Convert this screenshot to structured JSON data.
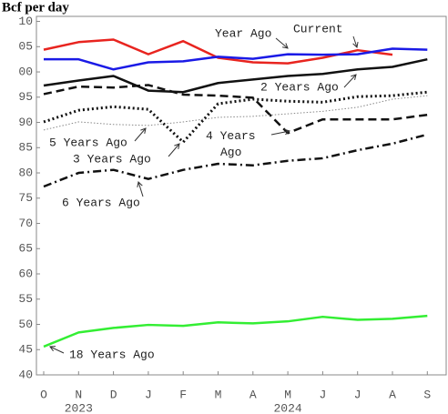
{
  "chart_data": {
    "type": "line",
    "title": "Bcf per day",
    "categories": [
      "O",
      "N",
      "D",
      "J",
      "F",
      "M",
      "A",
      "M",
      "J",
      "J",
      "A",
      "S"
    ],
    "year_labels": [
      "2023",
      "2024"
    ],
    "ylim": [
      40,
      111
    ],
    "yticks": [
      40,
      45,
      50,
      55,
      60,
      65,
      70,
      75,
      80,
      85,
      90,
      95,
      {
        "value": 100,
        "label": "00"
      },
      {
        "value": 105,
        "label": "05"
      },
      {
        "value": 110,
        "label": "10"
      }
    ],
    "grid": false,
    "series": [
      {
        "name": "Current",
        "color": "#e8241f",
        "style": "solid",
        "values": [
          104.4,
          105.9,
          106.4,
          103.5,
          106.1,
          102.8,
          101.9,
          101.7,
          102.8,
          104.3,
          103.4,
          null
        ]
      },
      {
        "name": "Year Ago",
        "color": "#1a1ae6",
        "style": "solid",
        "values": [
          102.5,
          102.5,
          100.5,
          101.9,
          102.1,
          103.0,
          102.6,
          103.5,
          103.4,
          103.5,
          104.6,
          104.4
        ]
      },
      {
        "name": "2 Years Ago",
        "color": "#111111",
        "style": "solid",
        "values": [
          97.3,
          98.3,
          99.2,
          96.3,
          96.0,
          97.8,
          98.5,
          99.2,
          99.6,
          100.5,
          101.0,
          102.5
        ]
      },
      {
        "name": "4 Years Ago",
        "color": "#111111",
        "style": "dashed",
        "values": [
          95.6,
          97.1,
          96.9,
          97.4,
          95.5,
          95.3,
          94.9,
          87.9,
          90.6,
          90.6,
          90.6,
          91.5
        ]
      },
      {
        "name": "5 Years Ago",
        "color": "#888888",
        "style": "thin-dotted",
        "values": [
          88.5,
          90.1,
          89.6,
          89.4,
          90.1,
          91.0,
          91.2,
          91.7,
          92.2,
          93.0,
          94.6,
          95.3
        ]
      },
      {
        "name": "3 Years Ago",
        "color": "#111111",
        "style": "dotted",
        "values": [
          90.1,
          92.4,
          93.1,
          92.6,
          86.1,
          93.7,
          94.6,
          94.2,
          94.0,
          95.1,
          95.3,
          96.0
        ]
      },
      {
        "name": "6 Years Ago",
        "color": "#111111",
        "style": "dash-dot",
        "values": [
          77.3,
          80.0,
          80.6,
          78.8,
          80.6,
          81.8,
          81.5,
          82.4,
          82.9,
          84.5,
          85.8,
          87.6
        ]
      },
      {
        "name": "18 Years Ago",
        "color": "#33ee33",
        "style": "solid",
        "values": [
          45.6,
          48.4,
          49.3,
          49.9,
          49.7,
          50.4,
          50.2,
          50.6,
          51.5,
          50.9,
          51.1,
          51.7
        ]
      }
    ]
  }
}
